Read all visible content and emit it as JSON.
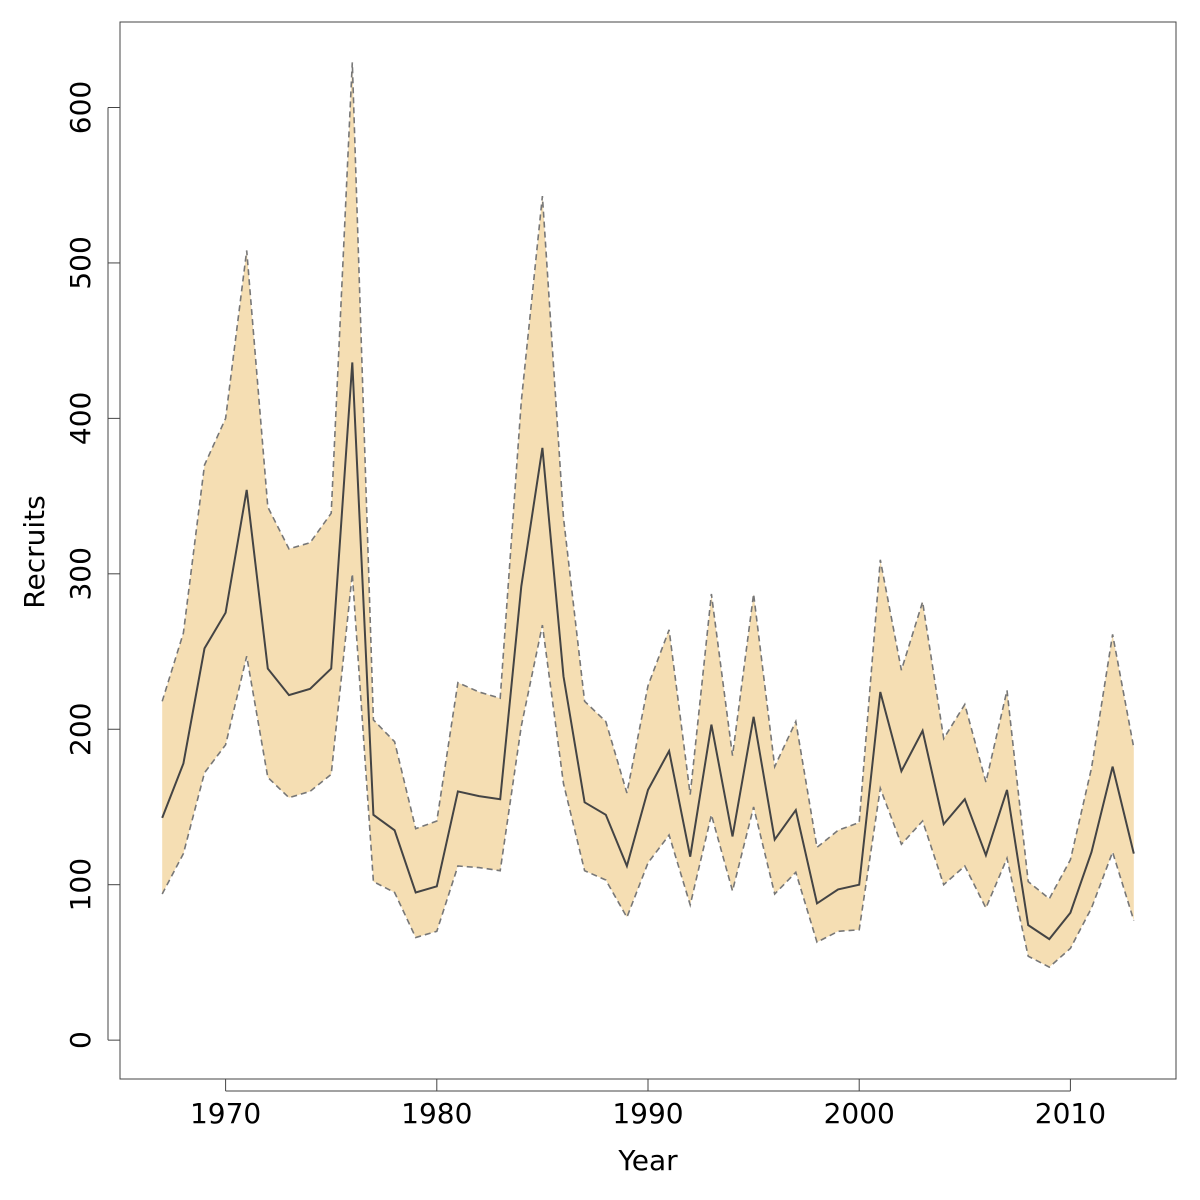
{
  "chart_data": {
    "type": "area",
    "xlabel": "Year",
    "ylabel": "Recruits",
    "xlim": [
      1965,
      2015
    ],
    "ylim": [
      -25,
      655
    ],
    "xticks": [
      1970,
      1980,
      1990,
      2000,
      2010
    ],
    "yticks": [
      0,
      100,
      200,
      300,
      400,
      500,
      600
    ],
    "grid": false,
    "legend": "none",
    "colors": {
      "band_fill": "#f5deb3",
      "band_edge": "#777777",
      "median_line": "#444444",
      "frame": "#444444"
    },
    "x": [
      1967,
      1968,
      1969,
      1970,
      1971,
      1972,
      1973,
      1974,
      1975,
      1976,
      1977,
      1978,
      1979,
      1980,
      1981,
      1982,
      1983,
      1984,
      1985,
      1986,
      1987,
      1988,
      1989,
      1990,
      1991,
      1992,
      1993,
      1994,
      1995,
      1996,
      1997,
      1998,
      1999,
      2000,
      2001,
      2002,
      2003,
      2004,
      2005,
      2006,
      2007,
      2008,
      2009,
      2010,
      2011,
      2012,
      2013
    ],
    "series": [
      {
        "role": "upper",
        "values": [
          218,
          262,
          370,
          400,
          508,
          343,
          316,
          320,
          339,
          629,
          206,
          192,
          136,
          141,
          230,
          224,
          220,
          411,
          543,
          336,
          218,
          205,
          159,
          228,
          264,
          158,
          287,
          183,
          287,
          176,
          205,
          124,
          135,
          140,
          309,
          238,
          282,
          194,
          216,
          166,
          225,
          102,
          91,
          116,
          175,
          261,
          188
        ]
      },
      {
        "role": "median",
        "values": [
          143,
          178,
          252,
          275,
          354,
          239,
          222,
          226,
          239,
          436,
          145,
          135,
          95,
          99,
          160,
          157,
          155,
          292,
          381,
          234,
          153,
          145,
          112,
          161,
          186,
          118,
          203,
          131,
          208,
          129,
          148,
          88,
          97,
          100,
          224,
          173,
          199,
          139,
          155,
          119,
          161,
          74,
          65,
          82,
          121,
          176,
          120
        ]
      },
      {
        "role": "lower",
        "values": [
          94,
          120,
          172,
          190,
          247,
          169,
          156,
          160,
          171,
          300,
          102,
          95,
          66,
          70,
          112,
          111,
          109,
          202,
          267,
          165,
          109,
          103,
          79,
          114,
          132,
          87,
          145,
          96,
          150,
          94,
          108,
          63,
          70,
          71,
          162,
          126,
          141,
          100,
          112,
          85,
          117,
          54,
          47,
          59,
          85,
          121,
          77
        ]
      }
    ]
  }
}
